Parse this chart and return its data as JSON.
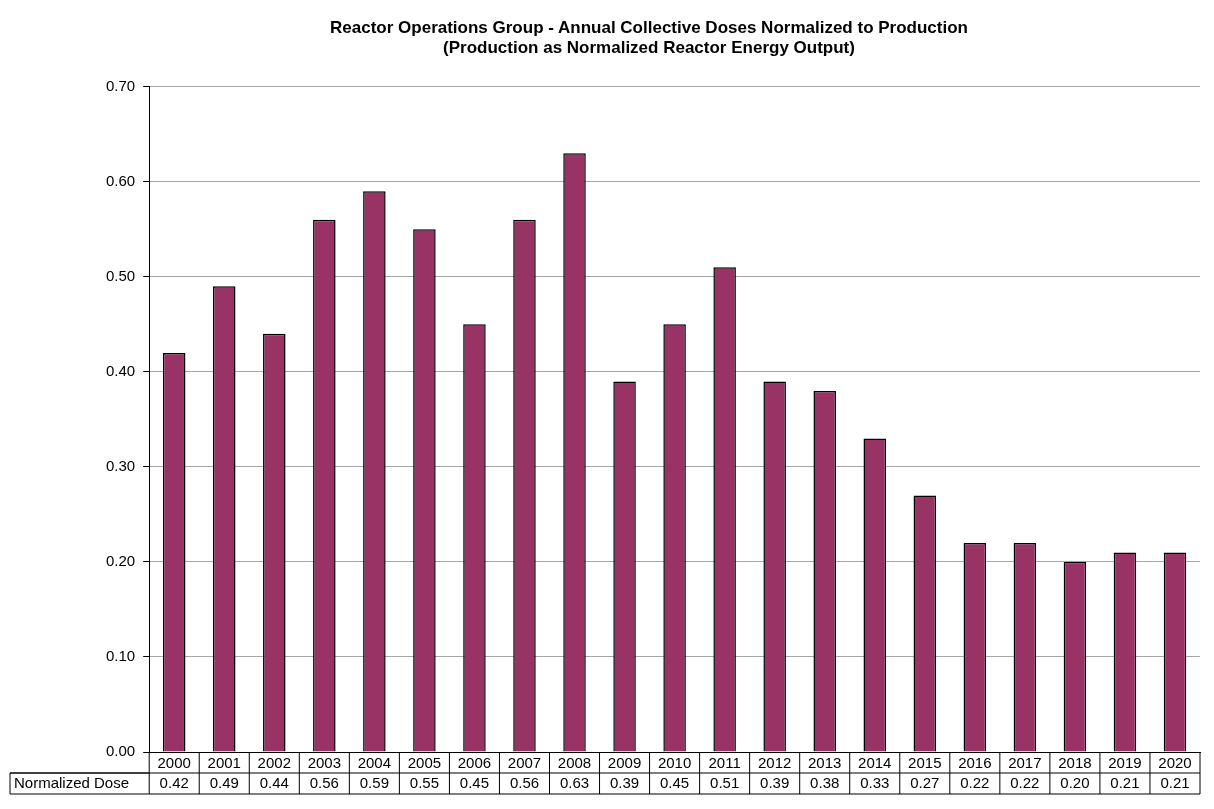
{
  "chart_data": {
    "type": "bar",
    "title": "Reactor Operations Group - Annual Collective Doses Normalized to Production\n(Production as Normalized Reactor Energy Output)",
    "categories": [
      "2000",
      "2001",
      "2002",
      "2003",
      "2004",
      "2005",
      "2006",
      "2007",
      "2008",
      "2009",
      "2010",
      "2011",
      "2012",
      "2013",
      "2014",
      "2015",
      "2016",
      "2017",
      "2018",
      "2019",
      "2020"
    ],
    "series": [
      {
        "name": "Normalized Dose",
        "color": "#993366",
        "values": [
          0.42,
          0.49,
          0.44,
          0.56,
          0.59,
          0.55,
          0.45,
          0.56,
          0.63,
          0.39,
          0.45,
          0.51,
          0.39,
          0.38,
          0.33,
          0.27,
          0.22,
          0.22,
          0.2,
          0.21,
          0.21
        ],
        "value_labels": [
          "0.42",
          "0.49",
          "0.44",
          "0.56",
          "0.59",
          "0.55",
          "0.45",
          "0.56",
          "0.63",
          "0.39",
          "0.45",
          "0.51",
          "0.39",
          "0.38",
          "0.33",
          "0.27",
          "0.22",
          "0.22",
          "0.20",
          "0.21",
          "0.21"
        ]
      }
    ],
    "ylim": [
      0,
      0.7
    ],
    "yticks": [
      {
        "value": 0,
        "label": "0.00"
      },
      {
        "value": 0.1,
        "label": "0.10"
      },
      {
        "value": 0.2,
        "label": "0.20"
      },
      {
        "value": 0.3,
        "label": "0.30"
      },
      {
        "value": 0.4,
        "label": "0.40"
      },
      {
        "value": 0.5,
        "label": "0.50"
      },
      {
        "value": 0.6,
        "label": "0.60"
      },
      {
        "value": 0.7,
        "label": "0.70"
      }
    ],
    "grid": "y",
    "legend": false
  }
}
